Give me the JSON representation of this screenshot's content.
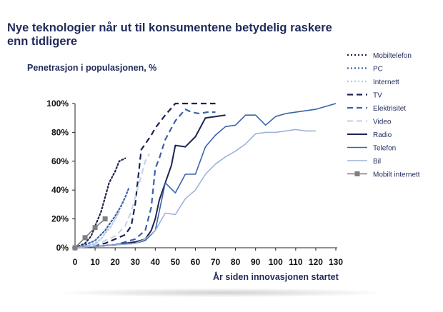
{
  "header": {
    "title": "Nye teknologier når ut til konsumentene betydelig raskere enn tidligere"
  },
  "colors": {
    "dark_navy": "#1d2350",
    "mid_blue": "#3a63a8",
    "light_blue": "#9cb3dc",
    "grey": "#7f7f7f",
    "text": "#1f2a5a"
  },
  "chart_data": {
    "type": "line",
    "xlabel": "År siden innovasjonen startet",
    "ylabel": "Penetrasjon i populasjonen, %",
    "xlim": [
      0,
      130
    ],
    "ylim": [
      0,
      100
    ],
    "x_ticks": [
      0,
      10,
      20,
      30,
      40,
      50,
      60,
      70,
      80,
      90,
      100,
      110,
      120,
      130
    ],
    "y_ticks": [
      "0%",
      "20%",
      "40%",
      "60%",
      "80%",
      "100%"
    ],
    "legend_position": "right",
    "series": [
      {
        "name": "Mobiltelefon",
        "style": "dotted",
        "color": "#1d2350",
        "points": [
          [
            0,
            0
          ],
          [
            5,
            3
          ],
          [
            8,
            8
          ],
          [
            10,
            15
          ],
          [
            13,
            25
          ],
          [
            15,
            35
          ],
          [
            17,
            45
          ],
          [
            20,
            53
          ],
          [
            22,
            60
          ],
          [
            25,
            62
          ]
        ]
      },
      {
        "name": "PC",
        "style": "dotted",
        "color": "#3a63a8",
        "points": [
          [
            0,
            0
          ],
          [
            5,
            2
          ],
          [
            10,
            5
          ],
          [
            15,
            12
          ],
          [
            18,
            18
          ],
          [
            20,
            22
          ],
          [
            23,
            29
          ],
          [
            25,
            35
          ],
          [
            27,
            42
          ]
        ]
      },
      {
        "name": "Internett",
        "style": "dotted",
        "color": "#b7c6e3",
        "points": [
          [
            0,
            0
          ],
          [
            5,
            1
          ],
          [
            10,
            3
          ],
          [
            13,
            6
          ],
          [
            15,
            10
          ],
          [
            18,
            15
          ],
          [
            20,
            20
          ],
          [
            22,
            25
          ]
        ]
      },
      {
        "name": "TV",
        "style": "dash",
        "color": "#1d2350",
        "points": [
          [
            0,
            0
          ],
          [
            5,
            1
          ],
          [
            10,
            2
          ],
          [
            15,
            3
          ],
          [
            20,
            6
          ],
          [
            25,
            9
          ],
          [
            28,
            15
          ],
          [
            30,
            30
          ],
          [
            33,
            68
          ],
          [
            35,
            72
          ],
          [
            38,
            78
          ],
          [
            40,
            83
          ],
          [
            45,
            92
          ],
          [
            50,
            100
          ],
          [
            55,
            100
          ],
          [
            60,
            100
          ],
          [
            65,
            100
          ],
          [
            70,
            100
          ]
        ]
      },
      {
        "name": "Elektrisitet",
        "style": "dash",
        "color": "#3a63a8",
        "points": [
          [
            0,
            0
          ],
          [
            10,
            1
          ],
          [
            20,
            2
          ],
          [
            25,
            4
          ],
          [
            30,
            6
          ],
          [
            35,
            12
          ],
          [
            38,
            28
          ],
          [
            40,
            55
          ],
          [
            42,
            62
          ],
          [
            45,
            75
          ],
          [
            50,
            88
          ],
          [
            55,
            96
          ],
          [
            58,
            94
          ],
          [
            62,
            93
          ],
          [
            66,
            94
          ],
          [
            70,
            94
          ]
        ]
      },
      {
        "name": "Video",
        "style": "dash",
        "color": "#c6d4ec",
        "points": [
          [
            0,
            0
          ],
          [
            10,
            2
          ],
          [
            15,
            5
          ],
          [
            20,
            8
          ],
          [
            25,
            15
          ],
          [
            28,
            25
          ],
          [
            30,
            35
          ],
          [
            33,
            50
          ],
          [
            35,
            60
          ],
          [
            37,
            65
          ]
        ]
      },
      {
        "name": "Radio",
        "style": "solid",
        "color": "#1d2350",
        "points": [
          [
            0,
            0
          ],
          [
            10,
            1
          ],
          [
            20,
            2
          ],
          [
            25,
            3
          ],
          [
            30,
            4
          ],
          [
            35,
            6
          ],
          [
            38,
            12
          ],
          [
            40,
            20
          ],
          [
            42,
            33
          ],
          [
            45,
            45
          ],
          [
            48,
            57
          ],
          [
            50,
            71
          ],
          [
            55,
            70
          ],
          [
            60,
            77
          ],
          [
            65,
            90
          ],
          [
            70,
            91
          ],
          [
            75,
            92
          ]
        ]
      },
      {
        "name": "Telefon",
        "style": "solid",
        "color": "#3a63a8",
        "points": [
          [
            0,
            0
          ],
          [
            10,
            1
          ],
          [
            20,
            2
          ],
          [
            30,
            3
          ],
          [
            35,
            5
          ],
          [
            40,
            12
          ],
          [
            45,
            45
          ],
          [
            50,
            38
          ],
          [
            55,
            51
          ],
          [
            60,
            51
          ],
          [
            65,
            70
          ],
          [
            70,
            78
          ],
          [
            75,
            84
          ],
          [
            80,
            85
          ],
          [
            85,
            92
          ],
          [
            90,
            92
          ],
          [
            95,
            85
          ],
          [
            100,
            91
          ],
          [
            105,
            93
          ],
          [
            110,
            94
          ],
          [
            115,
            95
          ],
          [
            120,
            96
          ],
          [
            125,
            98
          ],
          [
            130,
            100
          ]
        ]
      },
      {
        "name": "Bil",
        "style": "solid",
        "color": "#9cb3dc",
        "points": [
          [
            0,
            0
          ],
          [
            10,
            1
          ],
          [
            20,
            2
          ],
          [
            30,
            3
          ],
          [
            35,
            6
          ],
          [
            40,
            12
          ],
          [
            45,
            24
          ],
          [
            50,
            23
          ],
          [
            55,
            34
          ],
          [
            60,
            40
          ],
          [
            65,
            51
          ],
          [
            70,
            58
          ],
          [
            75,
            63
          ],
          [
            80,
            67
          ],
          [
            85,
            72
          ],
          [
            90,
            79
          ],
          [
            95,
            80
          ],
          [
            100,
            80
          ],
          [
            105,
            81
          ],
          [
            110,
            82
          ],
          [
            115,
            81
          ],
          [
            120,
            81
          ]
        ]
      },
      {
        "name": "Mobilt internett",
        "style": "marker",
        "color": "#7f7f7f",
        "points": [
          [
            0,
            0
          ],
          [
            5,
            7
          ],
          [
            10,
            14
          ],
          [
            15,
            20
          ]
        ]
      }
    ]
  }
}
